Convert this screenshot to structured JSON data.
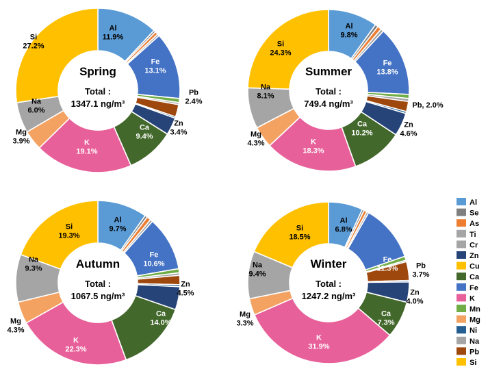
{
  "colors": {
    "Al": "#5b9bd5",
    "Se": "#7f7f7f",
    "As": "#ed7d31",
    "Ti": "#a5a5a5",
    "Cr": "#a5a5a5",
    "Zn": "#264478",
    "Cu": "#ffc000",
    "Ca": "#43682b",
    "Fe": "#4472c4",
    "K": "#e8609a",
    "Mn": "#70ad47",
    "Mg": "#f4a262",
    "Ni": "#255e91",
    "Na": "#a5a5a5",
    "Pb": "#9e480e",
    "Si": "#ffc000"
  },
  "chart_data": [
    {
      "type": "pie",
      "title": "Spring",
      "total_text": "Total :",
      "total_value": "1347.1 ng/m³",
      "slices": [
        {
          "element": "Al",
          "value": 11.9,
          "label": [
            "Al",
            "11.9%"
          ]
        },
        {
          "element": "Se",
          "value": 0.4
        },
        {
          "element": "As",
          "value": 0.6
        },
        {
          "element": "Ti",
          "value": 0.4
        },
        {
          "element": "Fe",
          "value": 13.1,
          "label": [
            "Fe",
            "13.1%"
          ]
        },
        {
          "element": "Mn",
          "value": 0.8
        },
        {
          "element": "Cr",
          "value": 0.4
        },
        {
          "element": "Pb",
          "value": 2.4,
          "label": [
            "Pb",
            "2.4%"
          ]
        },
        {
          "element": "Ni",
          "value": 0.3
        },
        {
          "element": "Zn",
          "value": 3.4,
          "label": [
            "Zn",
            "3.4%"
          ]
        },
        {
          "element": "Ca",
          "value": 9.4,
          "label": [
            "Ca",
            "9.4%"
          ]
        },
        {
          "element": "K",
          "value": 19.1,
          "label": [
            "K",
            "19.1%"
          ]
        },
        {
          "element": "Mg",
          "value": 3.9,
          "label": [
            "Mg",
            "3.9%"
          ]
        },
        {
          "element": "Na",
          "value": 6.0,
          "label": [
            "Na",
            "6.0%"
          ]
        },
        {
          "element": "Si",
          "value": 27.2,
          "label": [
            "Si",
            "27.2%"
          ]
        }
      ]
    },
    {
      "type": "pie",
      "title": "Summer",
      "total_text": "Total :",
      "total_value": "749.4 ng/m³",
      "slices": [
        {
          "element": "Al",
          "value": 9.8,
          "label": [
            "Al",
            "9.8%"
          ]
        },
        {
          "element": "Se",
          "value": 0.6
        },
        {
          "element": "As",
          "value": 0.8
        },
        {
          "element": "Ti",
          "value": 0.6
        },
        {
          "element": "Fe",
          "value": 13.8,
          "label": [
            "Fe",
            "13.8%"
          ]
        },
        {
          "element": "Mn",
          "value": 0.8
        },
        {
          "element": "Cr",
          "value": 0.6
        },
        {
          "element": "Pb",
          "value": 2.0,
          "label": [
            "Pb, 2.0%"
          ]
        },
        {
          "element": "Ni",
          "value": 0.4
        },
        {
          "element": "Zn",
          "value": 4.6,
          "label": [
            "Zn",
            "4.6%"
          ]
        },
        {
          "element": "Ca",
          "value": 10.2,
          "label": [
            "Ca",
            "10.2%"
          ]
        },
        {
          "element": "K",
          "value": 18.3,
          "label": [
            "K",
            "18.3%"
          ]
        },
        {
          "element": "Mg",
          "value": 4.3,
          "label": [
            "Mg",
            "4.3%"
          ]
        },
        {
          "element": "Na",
          "value": 8.1,
          "label": [
            "Na",
            "8.1%"
          ]
        },
        {
          "element": "Si",
          "value": 24.3,
          "label": [
            "Si",
            "24.3%"
          ]
        }
      ]
    },
    {
      "type": "pie",
      "title": "Autumn",
      "total_text": "Total :",
      "total_value": "1067.5 ng/m³",
      "slices": [
        {
          "element": "Al",
          "value": 9.7,
          "label": [
            "Al",
            "9.7%"
          ]
        },
        {
          "element": "Se",
          "value": 0.5
        },
        {
          "element": "As",
          "value": 0.8
        },
        {
          "element": "Ti",
          "value": 0.5
        },
        {
          "element": "Fe",
          "value": 10.6,
          "label": [
            "Fe",
            "10.6%"
          ]
        },
        {
          "element": "Mn",
          "value": 0.8
        },
        {
          "element": "Cr",
          "value": 0.5
        },
        {
          "element": "Pb",
          "value": 1.8
        },
        {
          "element": "Ni",
          "value": 0.4
        },
        {
          "element": "Zn",
          "value": 4.5,
          "label": [
            "Zn",
            "4.5%"
          ]
        },
        {
          "element": "Ca",
          "value": 14.0,
          "label": [
            "Ca",
            "14.0%"
          ]
        },
        {
          "element": "K",
          "value": 22.3,
          "label": [
            "K",
            "22.3%"
          ]
        },
        {
          "element": "Mg",
          "value": 4.3,
          "label": [
            "Mg",
            "4.3%"
          ]
        },
        {
          "element": "Na",
          "value": 9.3,
          "label": [
            "Na",
            "9.3%"
          ]
        },
        {
          "element": "Si",
          "value": 19.3,
          "label": [
            "Si",
            "19.3%"
          ]
        }
      ]
    },
    {
      "type": "pie",
      "title": "Winter",
      "total_text": "Total :",
      "total_value": "1247.2 ng/m³",
      "slices": [
        {
          "element": "Al",
          "value": 6.8,
          "label": [
            "Al",
            "6.8%"
          ]
        },
        {
          "element": "Se",
          "value": 0.4
        },
        {
          "element": "As",
          "value": 0.6
        },
        {
          "element": "Ti",
          "value": 0.4
        },
        {
          "element": "Fe",
          "value": 11.3,
          "label": [
            "Fe",
            "11.3%"
          ]
        },
        {
          "element": "Mn",
          "value": 0.8
        },
        {
          "element": "Cr",
          "value": 0.3
        },
        {
          "element": "Pb",
          "value": 3.7,
          "label": [
            "Pb",
            "3.7%"
          ]
        },
        {
          "element": "Ni",
          "value": 0.3
        },
        {
          "element": "Zn",
          "value": 4.0,
          "label": [
            "Zn",
            "4.0%"
          ]
        },
        {
          "element": "Ca",
          "value": 7.3,
          "label": [
            "Ca",
            "7.3%"
          ]
        },
        {
          "element": "K",
          "value": 31.9,
          "label": [
            "K",
            "31.9%"
          ]
        },
        {
          "element": "Mg",
          "value": 3.3,
          "label": [
            "Mg",
            "3.3%"
          ]
        },
        {
          "element": "Na",
          "value": 9.4,
          "label": [
            "Na",
            "9.4%"
          ]
        },
        {
          "element": "Si",
          "value": 18.5,
          "label": [
            "Si",
            "18.5%"
          ]
        }
      ]
    }
  ],
  "legend": [
    "Al",
    "Se",
    "As",
    "Ti",
    "Cr",
    "Zn",
    "Cu",
    "Ca",
    "Fe",
    "K",
    "Mn",
    "Mg",
    "Ni",
    "Na",
    "Pb",
    "Si"
  ]
}
